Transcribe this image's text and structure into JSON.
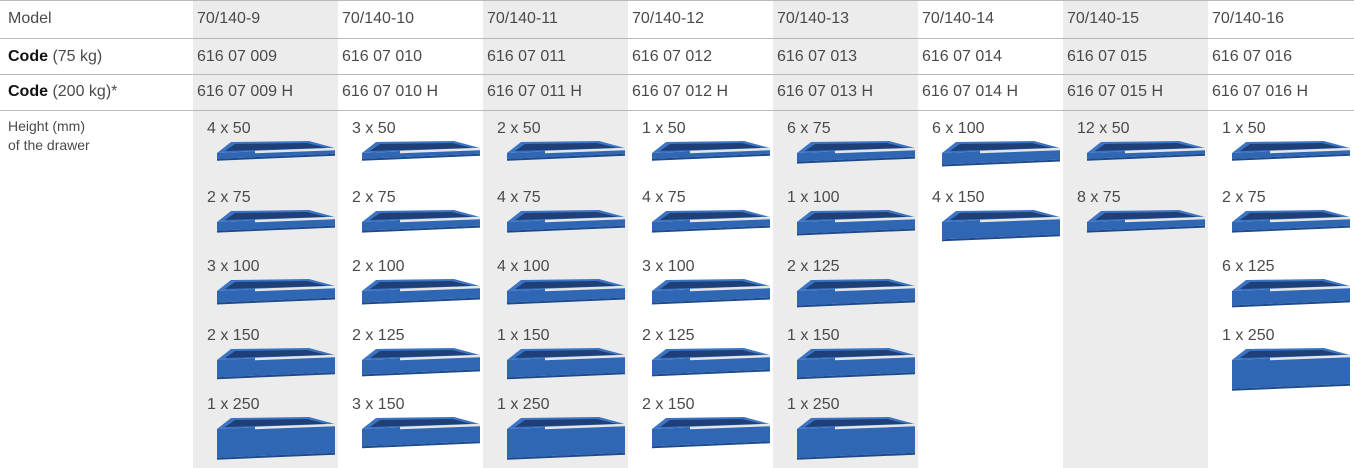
{
  "table": {
    "row_labels": {
      "model": "Model",
      "code_75": {
        "bold": "Code",
        "rest": "(75 kg)"
      },
      "code_200": {
        "bold": "Code",
        "rest": "(200 kg)*"
      },
      "height": [
        "Height (mm)",
        "of the drawer"
      ]
    },
    "columns": [
      {
        "model": "70/140-9",
        "code_75": "616 07 009",
        "code_200": "616 07 009 H",
        "drawers": [
          "4 x 50",
          "2 x 75",
          "3 x 100",
          "2 x 150",
          "1 x 250"
        ]
      },
      {
        "model": "70/140-10",
        "code_75": "616 07 010",
        "code_200": "616 07 010 H",
        "drawers": [
          "3 x 50",
          "2 x 75",
          "2 x 100",
          "2 x 125",
          "3 x 150"
        ]
      },
      {
        "model": "70/140-11",
        "code_75": "616 07 011",
        "code_200": "616 07 011 H",
        "drawers": [
          "2 x 50",
          "4 x 75",
          "4 x 100",
          "1 x 150",
          "1 x 250"
        ]
      },
      {
        "model": "70/140-12",
        "code_75": "616 07 012",
        "code_200": "616 07 012 H",
        "drawers": [
          "1 x 50",
          "4 x 75",
          "3 x 100",
          "2 x 125",
          "2 x 150"
        ]
      },
      {
        "model": "70/140-13",
        "code_75": "616 07 013",
        "code_200": "616 07 013 H",
        "drawers": [
          "6 x 75",
          "1 x 100",
          "2 x 125",
          "1 x 150",
          "1 x 250"
        ]
      },
      {
        "model": "70/140-14",
        "code_75": "616 07 014",
        "code_200": "616 07 014 H",
        "drawers": [
          "6 x 100",
          "4 x 150"
        ]
      },
      {
        "model": "70/140-15",
        "code_75": "616 07 015",
        "code_200": "616 07 015 H",
        "drawers": [
          "12 x 50",
          "8 x 75"
        ]
      },
      {
        "model": "70/140-16",
        "code_75": "616 07 016",
        "code_200": "616 07 016 H",
        "drawers": [
          "1 x 50",
          "2 x 75",
          "6 x 125",
          "1 x 250"
        ]
      }
    ]
  }
}
